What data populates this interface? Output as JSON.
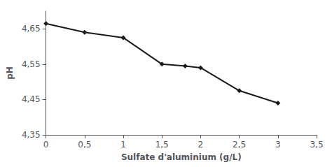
{
  "chart_data": {
    "type": "line",
    "x": [
      0,
      0.5,
      1.0,
      1.5,
      1.8,
      2.0,
      2.5,
      3.0
    ],
    "values": [
      4.665,
      4.64,
      4.625,
      4.55,
      4.545,
      4.54,
      4.475,
      4.44
    ],
    "xlabel": "Sulfate d'aluminium (g/L)",
    "ylabel": "pH",
    "xlim": [
      0,
      3.5
    ],
    "ylim": [
      4.35,
      4.7
    ],
    "xticks": [
      0,
      {
        "value": 0.5,
        "label": "0,5"
      },
      1,
      {
        "value": 1.5,
        "label": "1,5"
      },
      2,
      {
        "value": 2.5,
        "label": "2,5"
      },
      3,
      {
        "value": 3.5,
        "label": "3,5"
      }
    ],
    "yticks": [
      {
        "value": 4.35,
        "label": "4,35"
      },
      {
        "value": 4.45,
        "label": "4,45"
      },
      {
        "value": 4.55,
        "label": "4,55"
      },
      {
        "value": 4.65,
        "label": "4,65"
      }
    ],
    "color": "#1a1a1a",
    "marker": "diamond",
    "grid": false
  }
}
